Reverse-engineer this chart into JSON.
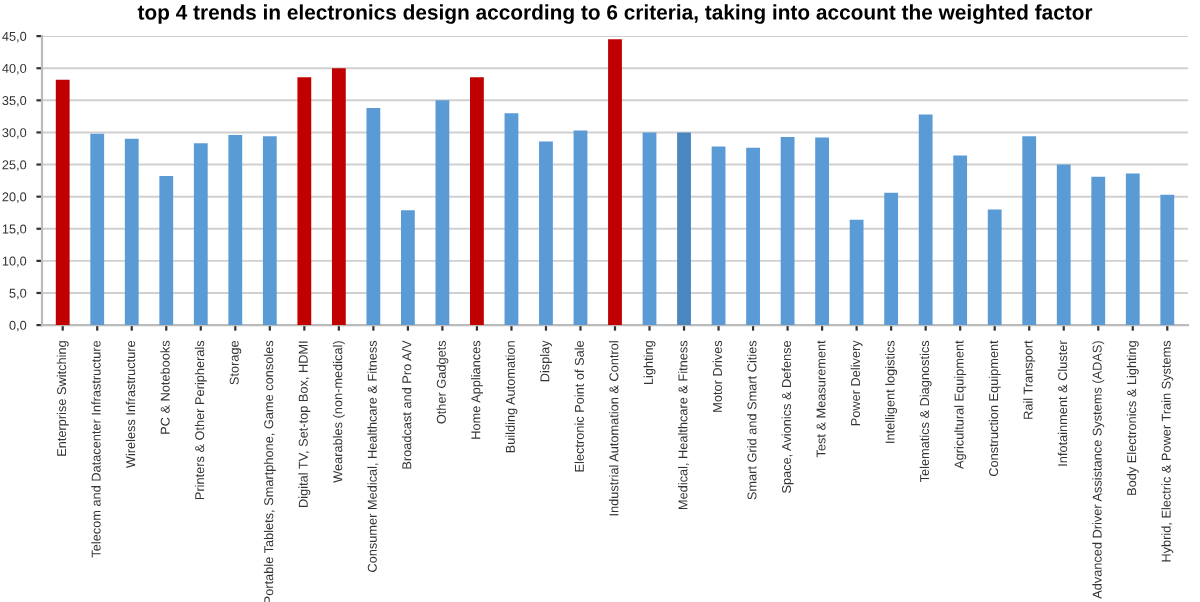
{
  "chart_data": {
    "type": "bar",
    "title": "top 4 trends in electronics design according to 6 criteria, taking into account the weighted factor",
    "categories": [
      "Enterprise Switching",
      "Telecom and Datacenter Infrastructure",
      "Wireless Infrastructure",
      "PC & Notebooks",
      "Printers & Other Peripherals",
      "Storage",
      "Portable Tablets, Smartphone, Game consoles",
      "Digital TV, Set-top Box, HDMI",
      "Wearables (non-medical)",
      "Consumer Medical, Healthcare & Fitness",
      "Broadcast and Pro A/V",
      "Other Gadgets",
      "Home Appliances",
      "Building Automation",
      "Display",
      "Electronic Point of Sale",
      "Industrial Automation & Control",
      "Lighting",
      "Medical, Healthcare & Fitness",
      "Motor Drives",
      "Smart Grid and Smart Cities",
      "Space, Avionics & Defense",
      "Test & Measurement",
      "Power Delivery",
      "Intelligent logistics",
      "Telematics & Diagnostics",
      "Agricultural Equipment",
      "Construction Equipment",
      "Rail Transport",
      "Infotainment & Cluster",
      "Advanced Driver Assistance Systems (ADAS)",
      "Body Electronics & Lighting",
      "Hybrid, Electric & Power Train Systems"
    ],
    "values": [
      38.2,
      29.8,
      29.0,
      23.2,
      28.3,
      29.6,
      29.4,
      38.6,
      40.0,
      33.8,
      17.9,
      35.0,
      38.6,
      33.0,
      28.6,
      30.3,
      44.5,
      30.0,
      30.0,
      27.8,
      27.6,
      29.3,
      29.2,
      16.4,
      20.6,
      32.8,
      26.4,
      18.0,
      29.4,
      25.0,
      23.1,
      23.6,
      20.3
    ],
    "colors": [
      "#c00000",
      "#5b9bd5",
      "#5b9bd5",
      "#5b9bd5",
      "#5b9bd5",
      "#5b9bd5",
      "#5b9bd5",
      "#c00000",
      "#c00000",
      "#5b9bd5",
      "#5b9bd5",
      "#5b9bd5",
      "#c00000",
      "#5b9bd5",
      "#5b9bd5",
      "#5b9bd5",
      "#c00000",
      "#5b9bd5",
      "#4a86c0",
      "#5b9bd5",
      "#5b9bd5",
      "#5b9bd5",
      "#5b9bd5",
      "#5b9bd5",
      "#5b9bd5",
      "#5b9bd5",
      "#5b9bd5",
      "#5b9bd5",
      "#5b9bd5",
      "#5b9bd5",
      "#5b9bd5",
      "#5b9bd5",
      "#5b9bd5"
    ],
    "ylim": [
      0,
      45
    ],
    "yticks": [
      {
        "value": 0,
        "label": "0,0"
      },
      {
        "value": 5,
        "label": "5,0"
      },
      {
        "value": 10,
        "label": "10,0"
      },
      {
        "value": 15,
        "label": "15,0"
      },
      {
        "value": 20,
        "label": "20,0"
      },
      {
        "value": 25,
        "label": "25,0"
      },
      {
        "value": 30,
        "label": "30,0"
      },
      {
        "value": 35,
        "label": "35,0"
      },
      {
        "value": 40,
        "label": "40,0"
      },
      {
        "value": 45,
        "label": "45,0"
      }
    ],
    "grid": "y",
    "legend": false
  }
}
